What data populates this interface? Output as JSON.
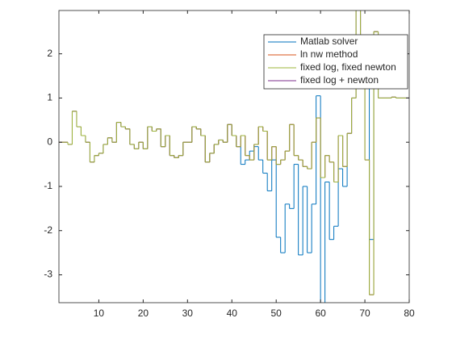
{
  "chart_data": {
    "type": "stairs",
    "x": [
      1,
      2,
      3,
      4,
      5,
      6,
      7,
      8,
      9,
      10,
      11,
      12,
      13,
      14,
      15,
      16,
      17,
      18,
      19,
      20,
      21,
      22,
      23,
      24,
      25,
      26,
      27,
      28,
      29,
      30,
      31,
      32,
      33,
      34,
      35,
      36,
      37,
      38,
      39,
      40,
      41,
      42,
      43,
      44,
      45,
      46,
      47,
      48,
      49,
      50,
      51,
      52,
      53,
      54,
      55,
      56,
      57,
      58,
      59,
      60,
      61,
      62,
      63,
      64,
      65,
      66,
      67,
      68,
      69,
      70,
      71,
      72,
      73,
      74,
      75,
      76,
      77,
      78,
      79,
      80
    ],
    "series": [
      {
        "name": "Matlab solver",
        "color": "#0072BD",
        "values": [
          0,
          0,
          -0.05,
          0.7,
          0.35,
          0.15,
          0,
          -0.45,
          -0.3,
          -0.25,
          -0.05,
          0.1,
          0,
          0.45,
          0.35,
          0.3,
          -0.05,
          -0.15,
          0,
          -0.15,
          0.35,
          0.25,
          0.3,
          -0.1,
          0.15,
          -0.3,
          -0.35,
          -0.3,
          0,
          0,
          0.35,
          0.3,
          0.15,
          -0.45,
          -0.25,
          -0.05,
          0.05,
          0,
          0.4,
          0.15,
          -0.1,
          -0.5,
          -0.4,
          -0.2,
          -0.1,
          -0.4,
          -0.7,
          -1.1,
          -0.4,
          -2.15,
          -2.5,
          -1.4,
          -1.5,
          -0.5,
          -2.55,
          -1.0,
          -2.5,
          -1.4,
          1.05,
          -3.7,
          -0.9,
          -2.2,
          -1.9,
          -0.6,
          -1.0,
          0.2,
          1.0,
          3.1,
          1.5,
          1.5,
          -2.2,
          2.5,
          1.0,
          1.0,
          1.0,
          1.02,
          1.0,
          1.0,
          1.0,
          1.0
        ]
      },
      {
        "name": "ln nw method",
        "color": "#D95319",
        "values": [
          0,
          0,
          -0.05,
          0.7,
          0.35,
          0.15,
          0,
          -0.45,
          -0.3,
          -0.25,
          -0.05,
          0.1,
          0,
          0.45,
          0.35,
          0.3,
          -0.05,
          -0.15,
          0,
          -0.15,
          0.35,
          0.25,
          0.3,
          -0.1,
          0.15,
          -0.3,
          -0.35,
          -0.3,
          0,
          0,
          0.35,
          0.3,
          0.15,
          -0.45,
          -0.25,
          -0.05,
          0.05,
          0,
          0.4,
          0.15,
          -0.1,
          0.15,
          -0.3,
          -0.4,
          -0.05,
          0.35,
          0.25,
          -0.4,
          -0.1,
          -0.5,
          -0.4,
          -0.2,
          0.4,
          -0.3,
          -0.4,
          -0.55,
          -0.6,
          0,
          0.55,
          -0.8,
          -0.3,
          -0.45,
          -0.9,
          0.15,
          -0.55,
          0.2,
          1.0,
          3.1,
          1.5,
          -0.4,
          -3.45,
          2.5,
          1.0,
          1.0,
          1.0,
          1.02,
          1.0,
          1.0,
          1.0,
          1.0
        ]
      },
      {
        "name": "fixed log, fixed newton",
        "color": "#9DB63A",
        "values": [
          0,
          0,
          -0.05,
          0.7,
          0.35,
          0.15,
          0,
          -0.45,
          -0.3,
          -0.25,
          -0.05,
          0.1,
          0,
          0.45,
          0.35,
          0.3,
          -0.05,
          -0.15,
          0,
          -0.15,
          0.35,
          0.25,
          0.3,
          -0.1,
          0.15,
          -0.3,
          -0.35,
          -0.3,
          0,
          0,
          0.35,
          0.3,
          0.15,
          -0.45,
          -0.25,
          -0.05,
          0.05,
          0,
          0.4,
          0.15,
          -0.1,
          0.15,
          -0.3,
          -0.4,
          -0.05,
          0.35,
          0.25,
          -0.4,
          -0.1,
          -0.5,
          -0.4,
          -0.2,
          0.4,
          -0.3,
          -0.4,
          -0.55,
          -0.6,
          0,
          0.55,
          -0.8,
          -0.3,
          -0.45,
          -0.9,
          0.15,
          -0.55,
          0.2,
          1.0,
          3.1,
          1.5,
          -0.4,
          -3.45,
          2.5,
          1.0,
          1.0,
          1.0,
          1.02,
          1.0,
          1.0,
          1.0,
          1.0
        ]
      },
      {
        "name": "fixed log + newton",
        "color": "#7E2F8E",
        "values": [
          0,
          0,
          -0.05,
          0.7,
          0.35,
          0.15,
          0,
          -0.45,
          -0.3,
          -0.25,
          -0.05,
          0.1,
          0,
          0.45,
          0.35,
          0.3,
          -0.05,
          -0.15,
          0,
          -0.15,
          0.35,
          0.25,
          0.3,
          -0.1,
          0.15,
          -0.3,
          -0.35,
          -0.3,
          0,
          0,
          0.35,
          0.3,
          0.15,
          -0.45,
          -0.25,
          -0.05,
          0.05,
          0,
          0.4,
          0.15,
          -0.1,
          0.15,
          -0.3,
          -0.4,
          -0.05,
          0.35,
          0.25,
          -0.4,
          -0.1,
          -0.5,
          -0.4,
          -0.2,
          0.4,
          -0.3,
          -0.4,
          -0.55,
          -0.6,
          0,
          0.55,
          -0.8,
          -0.3,
          -0.45,
          -0.9,
          0.15,
          -0.55,
          0.2,
          1.0,
          3.1,
          1.5,
          -0.4,
          -3.45,
          2.5,
          1.0,
          1.0,
          1.0,
          1.02,
          1.0,
          1.0,
          1.0,
          1.0
        ]
      }
    ],
    "xlim": [
      1,
      80
    ],
    "xticks": [
      10,
      20,
      30,
      40,
      50,
      60,
      70,
      80
    ],
    "ylim": [
      -3.63,
      2.98
    ],
    "yticks": [
      -3,
      -2,
      -1,
      0,
      1,
      2
    ],
    "legend": "upper right"
  }
}
